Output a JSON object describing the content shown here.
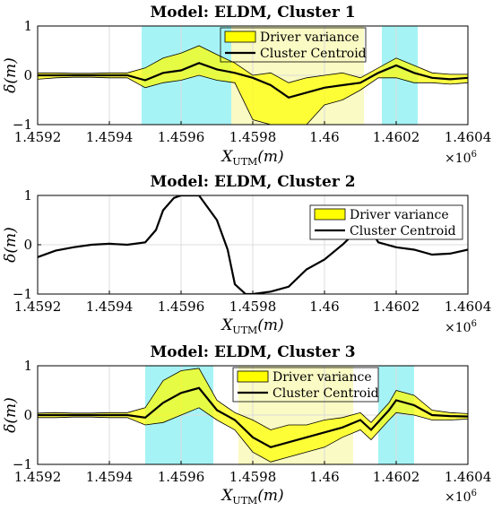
{
  "chart_data": [
    {
      "type": "line",
      "title": "Model: ELDM, Cluster 1",
      "xlabel": "X_UTM(m)",
      "ylabel": "δ(m)",
      "x_multiplier_label": "×10^6",
      "xlim": [
        1.4592,
        1.4604
      ],
      "ylim": [
        -1,
        1
      ],
      "xticks": [
        "1.4592",
        "1.4594",
        "1.4596",
        "1.4598",
        "1.46",
        "1.4602",
        "1.4604"
      ],
      "yticks": [
        "-1",
        "0",
        "1"
      ],
      "grid": true,
      "legend": {
        "placement": "top-center",
        "entries": [
          "Driver variance",
          "Cluster Centroid"
        ]
      },
      "highlight_regions": [
        {
          "x_range": [
            1.45949,
            1.45974
          ],
          "color": "#a6f3f5"
        },
        {
          "x_range": [
            1.46016,
            1.46026
          ],
          "color": "#a6f3f5"
        },
        {
          "x_range": [
            1.45974,
            1.46011
          ],
          "color": "#fafac4"
        }
      ],
      "series": [
        {
          "name": "Cluster Centroid",
          "x": [
            1.4592,
            1.45925,
            1.4593,
            1.45935,
            1.4594,
            1.45945,
            1.4595,
            1.45955,
            1.4596,
            1.45965,
            1.4597,
            1.45975,
            1.4598,
            1.45985,
            1.4599,
            1.45995,
            1.46,
            1.46005,
            1.4601,
            1.46015,
            1.4602,
            1.46025,
            1.4603,
            1.46035,
            1.4604
          ],
          "y": [
            0.0,
            0.0,
            0.0,
            0.0,
            0.0,
            0.0,
            -0.1,
            0.05,
            0.1,
            0.25,
            0.12,
            0.05,
            -0.05,
            -0.2,
            -0.45,
            -0.35,
            -0.25,
            -0.2,
            -0.15,
            0.05,
            0.2,
            0.05,
            -0.05,
            -0.08,
            -0.05
          ],
          "upper": [
            0.05,
            0.05,
            0.04,
            0.04,
            0.05,
            0.05,
            0.15,
            0.35,
            0.45,
            0.6,
            0.42,
            0.25,
            0.0,
            0.05,
            -0.15,
            -0.05,
            0.0,
            0.05,
            -0.05,
            0.15,
            0.35,
            0.2,
            0.05,
            0.02,
            0.02
          ],
          "lower": [
            -0.08,
            -0.05,
            -0.04,
            -0.04,
            -0.05,
            -0.05,
            -0.25,
            -0.15,
            -0.1,
            0.0,
            -0.1,
            -0.15,
            -0.9,
            -1.0,
            -1.0,
            -1.0,
            -0.6,
            -0.5,
            -0.3,
            -0.05,
            -0.05,
            -0.15,
            -0.15,
            -0.18,
            -0.15
          ]
        }
      ]
    },
    {
      "type": "line",
      "title": "Model: ELDM, Cluster 2",
      "xlabel": "X_UTM(m)",
      "ylabel": "δ(m)",
      "x_multiplier_label": "×10^6",
      "xlim": [
        1.4592,
        1.4604
      ],
      "ylim": [
        -1,
        1
      ],
      "xticks": [
        "1.4592",
        "1.4594",
        "1.4596",
        "1.4598",
        "1.46",
        "1.4602",
        "1.4604"
      ],
      "yticks": [
        "-1",
        "0",
        "1"
      ],
      "grid": true,
      "legend": {
        "placement": "top-right",
        "entries": [
          "Driver variance",
          "Cluster Centroid"
        ]
      },
      "series": [
        {
          "name": "Cluster Centroid",
          "x": [
            1.4592,
            1.45925,
            1.4593,
            1.45935,
            1.4594,
            1.45945,
            1.4595,
            1.45953,
            1.45955,
            1.45958,
            1.4596,
            1.45965,
            1.4597,
            1.45973,
            1.45975,
            1.45978,
            1.4598,
            1.45985,
            1.4599,
            1.45995,
            1.46,
            1.46005,
            1.4601,
            1.46013,
            1.46015,
            1.4602,
            1.46025,
            1.4603,
            1.46035,
            1.4604
          ],
          "y": [
            -0.25,
            -0.12,
            -0.05,
            0.0,
            0.02,
            0.0,
            0.05,
            0.3,
            0.7,
            0.95,
            1.0,
            1.0,
            0.5,
            -0.1,
            -0.8,
            -1.0,
            -1.0,
            -0.95,
            -0.85,
            -0.5,
            -0.3,
            0.0,
            0.35,
            0.3,
            0.05,
            -0.05,
            -0.1,
            -0.2,
            -0.18,
            -0.1
          ]
        }
      ]
    },
    {
      "type": "line",
      "title": "Model: ELDM, Cluster 3",
      "xlabel": "X_UTM(m)",
      "ylabel": "δ(m)",
      "x_multiplier_label": "×10^6",
      "xlim": [
        1.4592,
        1.4604
      ],
      "ylim": [
        -1,
        1
      ],
      "xticks": [
        "1.4592",
        "1.4594",
        "1.4596",
        "1.4598",
        "1.46",
        "1.4602",
        "1.4604"
      ],
      "yticks": [
        "-1",
        "0",
        "1"
      ],
      "grid": true,
      "legend": {
        "placement": "top-center",
        "entries": [
          "Driver variance",
          "Cluster Centroid"
        ]
      },
      "highlight_regions": [
        {
          "x_range": [
            1.4595,
            1.45969
          ],
          "color": "#a6f3f5"
        },
        {
          "x_range": [
            1.46015,
            1.46025
          ],
          "color": "#a6f3f5"
        },
        {
          "x_range": [
            1.45976,
            1.46008
          ],
          "color": "#fafac4"
        }
      ],
      "series": [
        {
          "name": "Cluster Centroid",
          "x": [
            1.4592,
            1.45925,
            1.4593,
            1.45935,
            1.4594,
            1.45945,
            1.4595,
            1.45955,
            1.4596,
            1.45965,
            1.4597,
            1.45975,
            1.4598,
            1.45985,
            1.4599,
            1.45995,
            1.46,
            1.46005,
            1.4601,
            1.46013,
            1.46018,
            1.4602,
            1.46025,
            1.4603,
            1.46035,
            1.4604
          ],
          "y": [
            0.0,
            0.0,
            0.0,
            0.0,
            0.0,
            0.0,
            -0.05,
            0.25,
            0.45,
            0.55,
            0.1,
            -0.1,
            -0.45,
            -0.65,
            -0.55,
            -0.45,
            -0.35,
            -0.25,
            -0.1,
            -0.3,
            0.1,
            0.3,
            0.2,
            0.0,
            -0.02,
            -0.03
          ],
          "upper": [
            0.04,
            0.05,
            0.04,
            0.04,
            0.05,
            0.05,
            0.15,
            0.7,
            0.9,
            0.95,
            0.3,
            0.05,
            -0.1,
            -0.3,
            -0.2,
            -0.2,
            -0.1,
            -0.05,
            0.05,
            -0.15,
            0.25,
            0.5,
            0.4,
            0.1,
            0.05,
            0.03
          ],
          "lower": [
            -0.05,
            -0.05,
            -0.04,
            -0.04,
            -0.05,
            -0.05,
            -0.2,
            -0.15,
            0.0,
            0.15,
            -0.1,
            -0.3,
            -0.75,
            -0.95,
            -0.85,
            -0.75,
            -0.65,
            -0.45,
            -0.3,
            -0.5,
            -0.1,
            0.05,
            0.0,
            -0.1,
            -0.1,
            -0.08
          ]
        }
      ]
    }
  ]
}
